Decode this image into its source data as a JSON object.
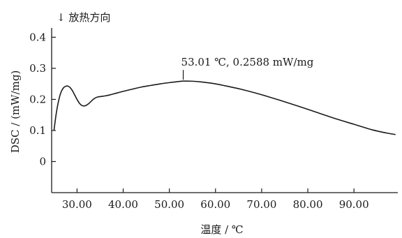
{
  "chart_data": {
    "type": "line",
    "direction_note": "↓ 放热方向",
    "xlabel": "温度 / ℃",
    "ylabel": "DSC / (mW/mg)",
    "xlim": [
      24.5,
      99.5
    ],
    "ylim": [
      -0.1,
      0.43
    ],
    "x_ticks": [
      30,
      40,
      50,
      60,
      70,
      80,
      90
    ],
    "x_tick_labels": [
      "30.00",
      "40.00",
      "50.00",
      "60.00",
      "70.00",
      "80.00",
      "90.00"
    ],
    "y_ticks": [
      0,
      0.1,
      0.2,
      0.3,
      0.4
    ],
    "y_tick_labels": [
      "0",
      "0.1",
      "0.2",
      "0.3",
      "0.4"
    ],
    "grid": false,
    "series": [
      {
        "x": [
          25.0,
          25.5,
          26.0,
          26.5,
          27.0,
          27.5,
          28.0,
          28.5,
          29.0,
          29.5,
          30.0,
          30.5,
          31.0,
          31.5,
          32.0,
          32.5,
          33.0,
          33.5,
          34.0,
          34.5,
          35.0,
          35.5,
          36.0,
          37.0,
          38.0,
          40.0,
          42.0,
          44.0,
          46.0,
          48.0,
          50.0,
          52.0,
          53.01,
          55.0,
          57.0,
          60.0,
          63.0,
          66.0,
          70.0,
          74.0,
          78.0,
          82.0,
          86.0,
          90.0,
          94.0,
          97.0,
          99.0
        ],
        "y": [
          0.1,
          0.155,
          0.195,
          0.222,
          0.236,
          0.242,
          0.243,
          0.238,
          0.228,
          0.214,
          0.2,
          0.188,
          0.181,
          0.179,
          0.181,
          0.186,
          0.193,
          0.2,
          0.205,
          0.208,
          0.209,
          0.21,
          0.211,
          0.214,
          0.218,
          0.226,
          0.233,
          0.24,
          0.245,
          0.25,
          0.254,
          0.2575,
          0.2588,
          0.2585,
          0.256,
          0.25,
          0.241,
          0.231,
          0.215,
          0.197,
          0.178,
          0.158,
          0.138,
          0.12,
          0.102,
          0.092,
          0.087
        ]
      }
    ],
    "annotation": {
      "text": "53.01 ℃, 0.2588 mW/mg",
      "x": 53.01,
      "y": 0.2588
    }
  }
}
